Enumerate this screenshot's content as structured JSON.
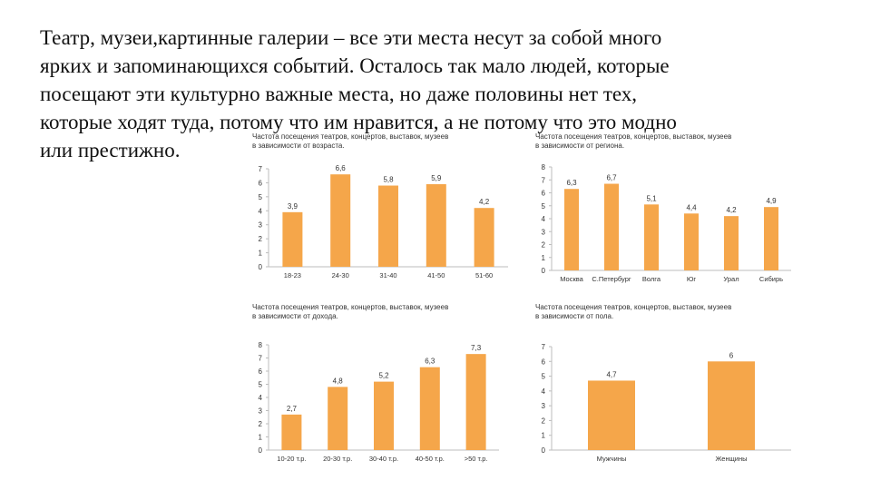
{
  "intro": {
    "lines": [
      "Театр, музеи,картинные галерии – все эти места несут за собой много",
      "ярких и запоминающихся событий. Осталось так мало людей, которые",
      "посещают эти культурно важные места, но даже половины нет тех,",
      "которые ходят туда, потому что им нравится, а не потому что это модно",
      "или престижно."
    ]
  },
  "colors": {
    "bar": "#f5a64a",
    "axis": "#bdbdbd",
    "text": "#333333"
  },
  "chart_data": [
    {
      "type": "bar",
      "title_lines": [
        "Частота посещения театров, концертов, выставок, музеев",
        "в зависимости от возраста."
      ],
      "categories": [
        "18-23",
        "24-30",
        "31-40",
        "41-50",
        "51-60"
      ],
      "values": [
        3.9,
        6.6,
        5.8,
        5.9,
        4.2
      ],
      "value_labels": [
        "3,9",
        "6,6",
        "5,8",
        "5,9",
        "4,2"
      ],
      "ylim": [
        0,
        7
      ],
      "yticks": [
        "0",
        "1",
        "2",
        "3",
        "4",
        "5",
        "6",
        "7"
      ],
      "grid": false
    },
    {
      "type": "bar",
      "title_lines": [
        "Частота посещения театров, концертов, выставок, музеев",
        "в зависимости от региона."
      ],
      "categories": [
        "Москва",
        "С.Петербург",
        "Волга",
        "Юг",
        "Урал",
        "Сибирь"
      ],
      "values": [
        6.3,
        6.7,
        5.1,
        4.4,
        4.2,
        4.9
      ],
      "value_labels": [
        "6,3",
        "6,7",
        "5,1",
        "4,4",
        "4,2",
        "4,9"
      ],
      "ylim": [
        0,
        8
      ],
      "yticks": [
        "0",
        "1",
        "2",
        "3",
        "4",
        "5",
        "6",
        "7",
        "8"
      ],
      "grid": false
    },
    {
      "type": "bar",
      "title_lines": [
        "Частота посещения театров, концертов, выставок, музеев",
        "в зависимости от дохода."
      ],
      "categories": [
        "10-20 т.р.",
        "20-30 т.р.",
        "30-40 т.р.",
        "40-50 т.р.",
        ">50 т.р."
      ],
      "values": [
        2.7,
        4.8,
        5.2,
        6.3,
        7.3
      ],
      "value_labels": [
        "2,7",
        "4,8",
        "5,2",
        "6,3",
        "7,3"
      ],
      "ylim": [
        0,
        8
      ],
      "yticks": [
        "0",
        "1",
        "2",
        "3",
        "4",
        "5",
        "6",
        "7",
        "8"
      ],
      "grid": false
    },
    {
      "type": "bar",
      "title_lines": [
        "Частота посещения театров, концертов, выставок, музеев",
        "в зависимости от пола."
      ],
      "categories": [
        "Мужчины",
        "Женщины"
      ],
      "values": [
        4.7,
        6
      ],
      "value_labels": [
        "4,7",
        "6"
      ],
      "ylim": [
        0,
        7
      ],
      "yticks": [
        "0",
        "1",
        "2",
        "3",
        "4",
        "5",
        "6",
        "7"
      ],
      "grid": false
    }
  ]
}
